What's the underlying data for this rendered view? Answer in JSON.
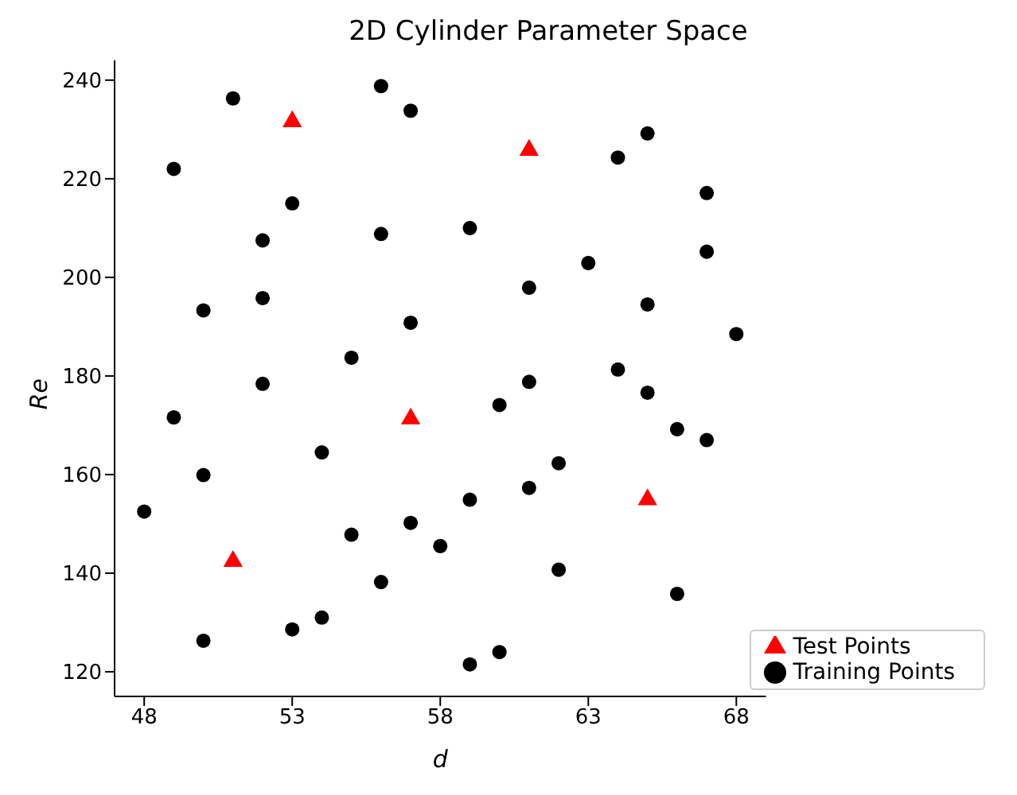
{
  "chart_data": {
    "type": "scatter",
    "title": "2D Cylinder Parameter Space",
    "xlabel": "d",
    "ylabel": "Re",
    "xlim": [
      47,
      69
    ],
    "xticks": [
      48,
      53,
      58,
      63,
      68
    ],
    "ylim": [
      115,
      244
    ],
    "yticks": [
      120,
      140,
      160,
      180,
      200,
      220,
      240
    ],
    "grid": false,
    "legend": "bottom right",
    "series": [
      {
        "name": "Training Points",
        "color": "#000000",
        "marker": "circle",
        "x": [
          48,
          49,
          49,
          50,
          50,
          50,
          51,
          52,
          52,
          52,
          53,
          53,
          54,
          54,
          55,
          55,
          56,
          56,
          56,
          57,
          57,
          57,
          58,
          59,
          59,
          59,
          60,
          60,
          61,
          61,
          61,
          62,
          62,
          63,
          64,
          64,
          65,
          65,
          65,
          66,
          66,
          67,
          67,
          67,
          68
        ],
        "values": [
          152.5,
          222,
          171.6,
          193.3,
          159.9,
          126.3,
          236.3,
          207.5,
          195.8,
          178.4,
          215,
          128.6,
          131,
          164.5,
          183.7,
          147.8,
          238.8,
          208.8,
          138.2,
          233.8,
          190.8,
          150.2,
          145.5,
          210,
          154.9,
          121.5,
          174.1,
          124,
          197.9,
          178.8,
          157.3,
          162.3,
          140.7,
          202.9,
          224.3,
          181.3,
          229.2,
          194.5,
          176.6,
          169.2,
          135.8,
          217.1,
          205.2,
          167,
          188.5
        ]
      },
      {
        "name": "Test Points",
        "color": "#ff0000",
        "marker": "triangle",
        "x": [
          53,
          61,
          57,
          65,
          51
        ],
        "values": [
          231.6,
          225.8,
          171.3,
          154.9,
          142.4
        ]
      }
    ]
  }
}
